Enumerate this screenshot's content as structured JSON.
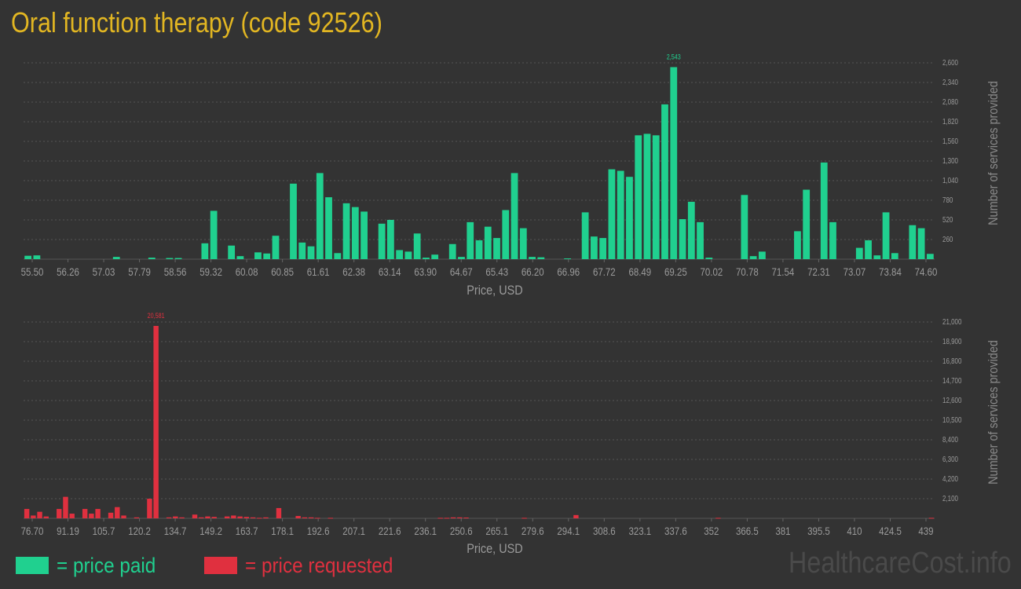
{
  "title": "Oral function therapy (code 92526)",
  "colors": {
    "paid": "#20d08f",
    "requested": "#e0303f",
    "title": "#e2b622"
  },
  "legend": {
    "paid_label": "= price paid",
    "requested_label": "= price requested"
  },
  "watermark": "HealthcareCost.info",
  "chart_data": [
    {
      "type": "bar",
      "name": "paid",
      "xlabel": "Price, USD",
      "ylabel": "Number of services provided",
      "x_ticks": [
        "55.50",
        "56.26",
        "57.03",
        "57.79",
        "58.56",
        "59.32",
        "60.08",
        "60.85",
        "61.61",
        "62.38",
        "63.14",
        "63.90",
        "64.67",
        "65.43",
        "66.20",
        "66.96",
        "67.72",
        "68.49",
        "69.25",
        "70.02",
        "70.78",
        "71.54",
        "72.31",
        "73.07",
        "73.84",
        "74.60"
      ],
      "x_range": [
        55.5,
        74.6
      ],
      "y_ticks": [
        "260",
        "520",
        "780",
        "1,040",
        "1,300",
        "1,560",
        "1,820",
        "2,080",
        "2,340",
        "2,600"
      ],
      "ylim": [
        0,
        2600
      ],
      "peak_label": "2,543",
      "values": [
        45,
        50,
        0,
        0,
        0,
        0,
        0,
        0,
        0,
        0,
        30,
        0,
        0,
        0,
        20,
        0,
        15,
        15,
        0,
        0,
        210,
        640,
        0,
        180,
        40,
        0,
        90,
        75,
        310,
        0,
        1000,
        220,
        170,
        1140,
        820,
        80,
        740,
        690,
        630,
        0,
        470,
        520,
        120,
        100,
        340,
        20,
        60,
        0,
        200,
        30,
        490,
        250,
        430,
        280,
        650,
        1140,
        410,
        30,
        25,
        0,
        0,
        10,
        0,
        620,
        300,
        280,
        1190,
        1170,
        1090,
        1640,
        1660,
        1640,
        2050,
        2543,
        530,
        760,
        490,
        20,
        0,
        0,
        0,
        850,
        40,
        100,
        0,
        0,
        0,
        370,
        920,
        0,
        1280,
        490,
        0,
        0,
        150,
        250,
        50,
        620,
        80,
        0,
        450,
        410,
        70
      ]
    },
    {
      "type": "bar",
      "name": "requested",
      "xlabel": "Price, USD",
      "ylabel": "Number of services provided",
      "x_ticks": [
        "76.70",
        "91.19",
        "105.7",
        "120.2",
        "134.7",
        "149.2",
        "163.7",
        "178.1",
        "192.6",
        "207.1",
        "221.6",
        "236.1",
        "250.6",
        "265.1",
        "279.6",
        "294.1",
        "308.6",
        "323.1",
        "337.6",
        "352",
        "366.5",
        "381",
        "395.5",
        "410",
        "424.5",
        "439"
      ],
      "x_range": [
        76.7,
        439
      ],
      "y_ticks": [
        "2,100",
        "4,200",
        "6,300",
        "8,400",
        "10,500",
        "12,600",
        "14,700",
        "16,800",
        "18,900",
        "21,000"
      ],
      "ylim": [
        0,
        21000
      ],
      "peak_label": "20,581",
      "values": [
        1000,
        300,
        700,
        200,
        0,
        1000,
        2300,
        500,
        0,
        1000,
        500,
        1000,
        0,
        600,
        1200,
        300,
        0,
        100,
        0,
        2100,
        20581,
        0,
        100,
        200,
        100,
        0,
        400,
        100,
        200,
        150,
        0,
        200,
        300,
        200,
        150,
        100,
        50,
        100,
        0,
        1100,
        0,
        0,
        250,
        100,
        100,
        50,
        0,
        50,
        0,
        0,
        0,
        0,
        0,
        0,
        0,
        0,
        0,
        0,
        0,
        0,
        0,
        0,
        0,
        0,
        50,
        50,
        100,
        100,
        80,
        0,
        0,
        0,
        0,
        0,
        0,
        0,
        0,
        50,
        0,
        0,
        0,
        0,
        0,
        0,
        0,
        350,
        0,
        0,
        0,
        0,
        0,
        0,
        0,
        0,
        0,
        0,
        0,
        0,
        0,
        0,
        0,
        0,
        0,
        0,
        0,
        0,
        0,
        50,
        0,
        0,
        0,
        0,
        0,
        0,
        0,
        0,
        0,
        0,
        0,
        0,
        0,
        0,
        0,
        0,
        0,
        0,
        0,
        0,
        0,
        0,
        0,
        0,
        0,
        0,
        0,
        0,
        0,
        0,
        0,
        0,
        50
      ]
    }
  ]
}
